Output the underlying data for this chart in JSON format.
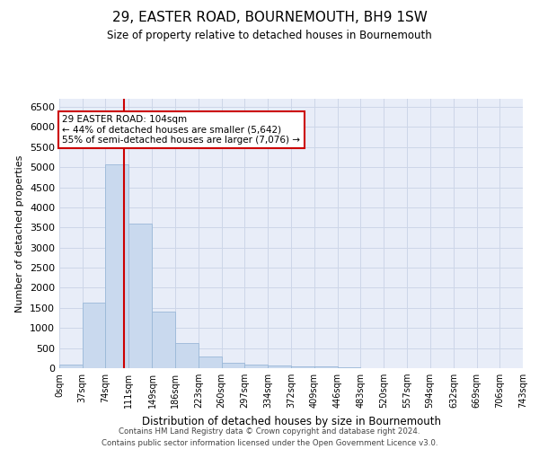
{
  "title": "29, EASTER ROAD, BOURNEMOUTH, BH9 1SW",
  "subtitle": "Size of property relative to detached houses in Bournemouth",
  "xlabel": "Distribution of detached houses by size in Bournemouth",
  "ylabel": "Number of detached properties",
  "footer_line1": "Contains HM Land Registry data © Crown copyright and database right 2024.",
  "footer_line2": "Contains public sector information licensed under the Open Government Licence v3.0.",
  "bin_edges": [
    0,
    37,
    74,
    111,
    149,
    186,
    223,
    260,
    297,
    334,
    372,
    409,
    446,
    483,
    520,
    557,
    594,
    632,
    669,
    706,
    743
  ],
  "bar_heights": [
    80,
    1640,
    5080,
    3600,
    1410,
    620,
    300,
    140,
    90,
    60,
    50,
    40,
    20,
    10,
    5,
    5,
    5,
    3,
    2,
    1
  ],
  "bar_color": "#c9d9ee",
  "bar_edge_color": "#9ab8d8",
  "grid_color": "#cdd6e8",
  "annotation_text": "29 EASTER ROAD: 104sqm\n← 44% of detached houses are smaller (5,642)\n55% of semi-detached houses are larger (7,076) →",
  "annotation_box_color": "#ffffff",
  "annotation_box_edge_color": "#cc0000",
  "vline_x": 104,
  "vline_color": "#cc0000",
  "ylim": [
    0,
    6700
  ],
  "xlim": [
    0,
    743
  ],
  "yticks": [
    0,
    500,
    1000,
    1500,
    2000,
    2500,
    3000,
    3500,
    4000,
    4500,
    5000,
    5500,
    6000,
    6500
  ],
  "xtick_labels": [
    "0sqm",
    "37sqm",
    "74sqm",
    "111sqm",
    "149sqm",
    "186sqm",
    "223sqm",
    "260sqm",
    "297sqm",
    "334sqm",
    "372sqm",
    "409sqm",
    "446sqm",
    "483sqm",
    "520sqm",
    "557sqm",
    "594sqm",
    "632sqm",
    "669sqm",
    "706sqm",
    "743sqm"
  ],
  "background_color": "#e8edf8"
}
